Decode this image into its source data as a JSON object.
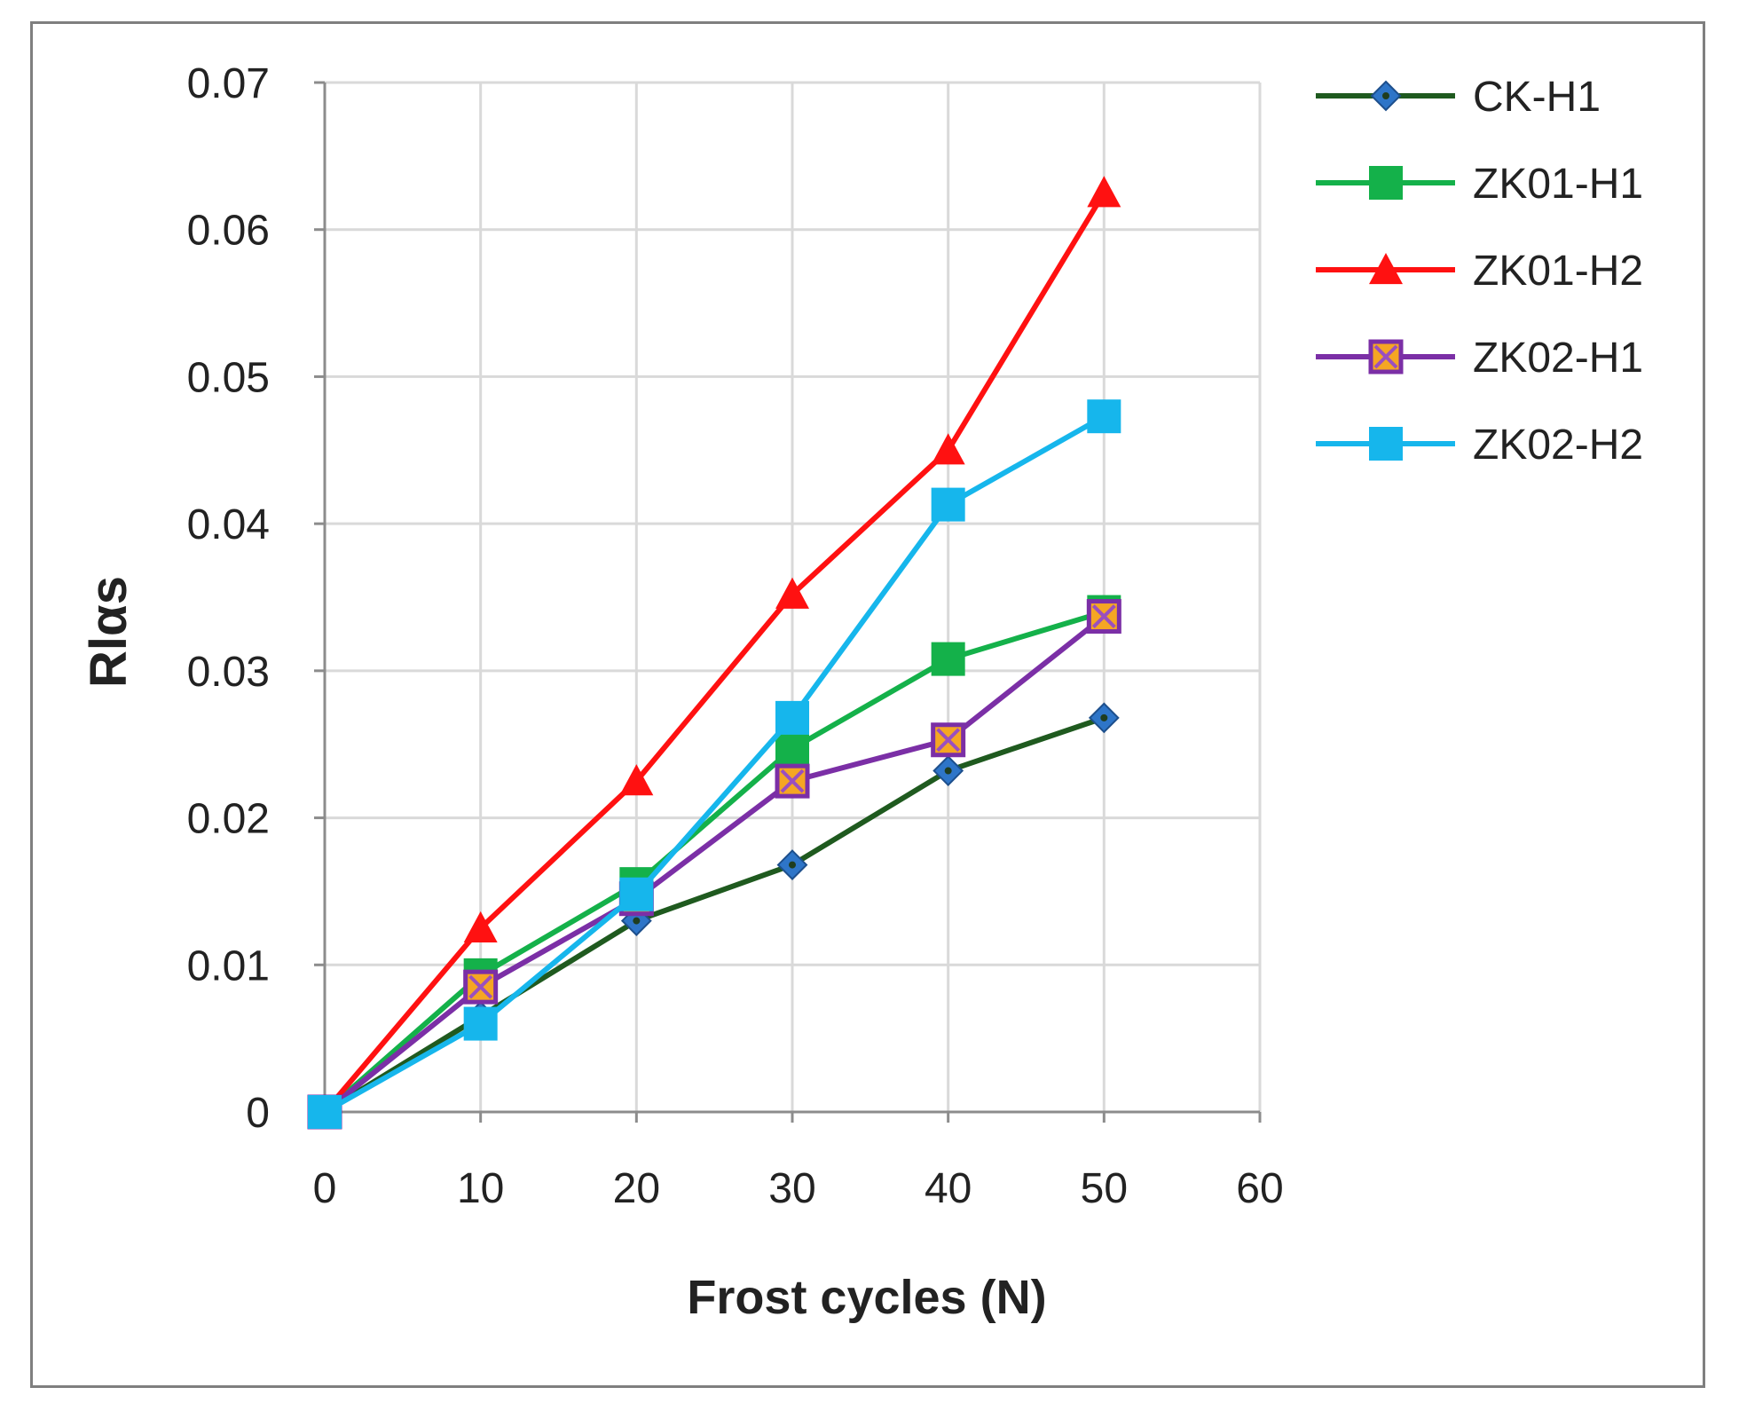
{
  "chart_data": {
    "type": "line",
    "title": "",
    "xlabel": "Frost cycles (N)",
    "ylabel": "Rlαs",
    "xlim": [
      0,
      60
    ],
    "ylim": [
      0,
      0.07
    ],
    "xticks": [
      0,
      10,
      20,
      30,
      40,
      50,
      60
    ],
    "yticks": [
      0,
      0.01,
      0.02,
      0.03,
      0.04,
      0.05,
      0.06,
      0.07
    ],
    "xtick_labels": [
      "0",
      "10",
      "20",
      "30",
      "40",
      "50",
      "60"
    ],
    "ytick_labels": [
      "0",
      "0.01",
      "0.02",
      "0.03",
      "0.04",
      "0.05",
      "0.06",
      "0.07"
    ],
    "grid": true,
    "legend_position": "right",
    "x": [
      0,
      10,
      20,
      30,
      40,
      50
    ],
    "series": [
      {
        "name": "CK-H1",
        "values": [
          0,
          0.0065,
          0.013,
          0.0168,
          0.0232,
          0.0268
        ],
        "color": "#1f5a1f",
        "marker": "diamond",
        "marker_color": "#2e75c8"
      },
      {
        "name": "ZK01-H1",
        "values": [
          0,
          0.0093,
          0.0155,
          0.0247,
          0.0308,
          0.034
        ],
        "color": "#14b14a",
        "marker": "square",
        "marker_color": "#14b14a"
      },
      {
        "name": "ZK01-H2",
        "values": [
          0,
          0.0125,
          0.0225,
          0.0352,
          0.045,
          0.0625
        ],
        "color": "#ff1111",
        "marker": "triangle",
        "marker_color": "#ff1111"
      },
      {
        "name": "ZK02-H1",
        "values": [
          0,
          0.0085,
          0.0145,
          0.0225,
          0.0253,
          0.0337
        ],
        "color": "#7b2fa6",
        "marker": "square-x",
        "marker_color": "#f5a623"
      },
      {
        "name": "ZK02-H2",
        "values": [
          0,
          0.006,
          0.0148,
          0.0268,
          0.0413,
          0.0473
        ],
        "color": "#16b6ec",
        "marker": "square",
        "marker_color": "#16b6ec"
      }
    ]
  }
}
